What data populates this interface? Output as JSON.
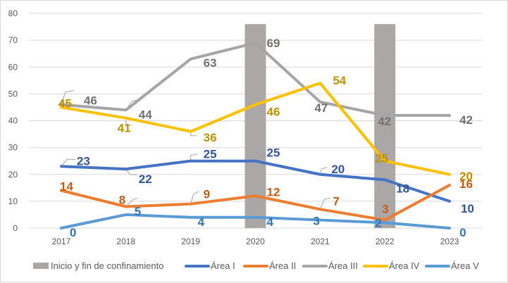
{
  "chart_data": {
    "type": "line",
    "title": "",
    "xlabel": "",
    "ylabel": "",
    "categories": [
      "2017",
      "2018",
      "2019",
      "2020",
      "2021",
      "2022",
      "2023"
    ],
    "ylim": [
      0,
      80
    ],
    "yticks": [
      0,
      10,
      20,
      30,
      40,
      50,
      60,
      70,
      80
    ],
    "grid": true,
    "legend_position": "bottom",
    "bars": {
      "name": "Inicio y fin de confinamiento",
      "color": "#ABA7A7",
      "values": [
        null,
        null,
        null,
        76,
        null,
        76,
        null
      ]
    },
    "series": [
      {
        "name": "Área I",
        "color": "#4472C4",
        "label_color": "#2F5597",
        "values": [
          23,
          22,
          25,
          25,
          20,
          18,
          10
        ]
      },
      {
        "name": "Área II",
        "color": "#ED7D31",
        "label_color": "#C55A11",
        "values": [
          14,
          8,
          9,
          12,
          7,
          3,
          16
        ]
      },
      {
        "name": "Área III",
        "color": "#A5A5A5",
        "label_color": "#767171",
        "values": [
          46,
          44,
          63,
          69,
          47,
          42,
          42
        ]
      },
      {
        "name": "Área IV",
        "color": "#FFC000",
        "label_color": "#BF9000",
        "values": [
          45,
          41,
          36,
          46,
          54,
          25,
          20
        ]
      },
      {
        "name": "Área V",
        "color": "#5B9BD5",
        "label_color": "#2E75B6",
        "values": [
          0,
          5,
          4,
          4,
          3,
          2,
          0
        ]
      }
    ]
  }
}
